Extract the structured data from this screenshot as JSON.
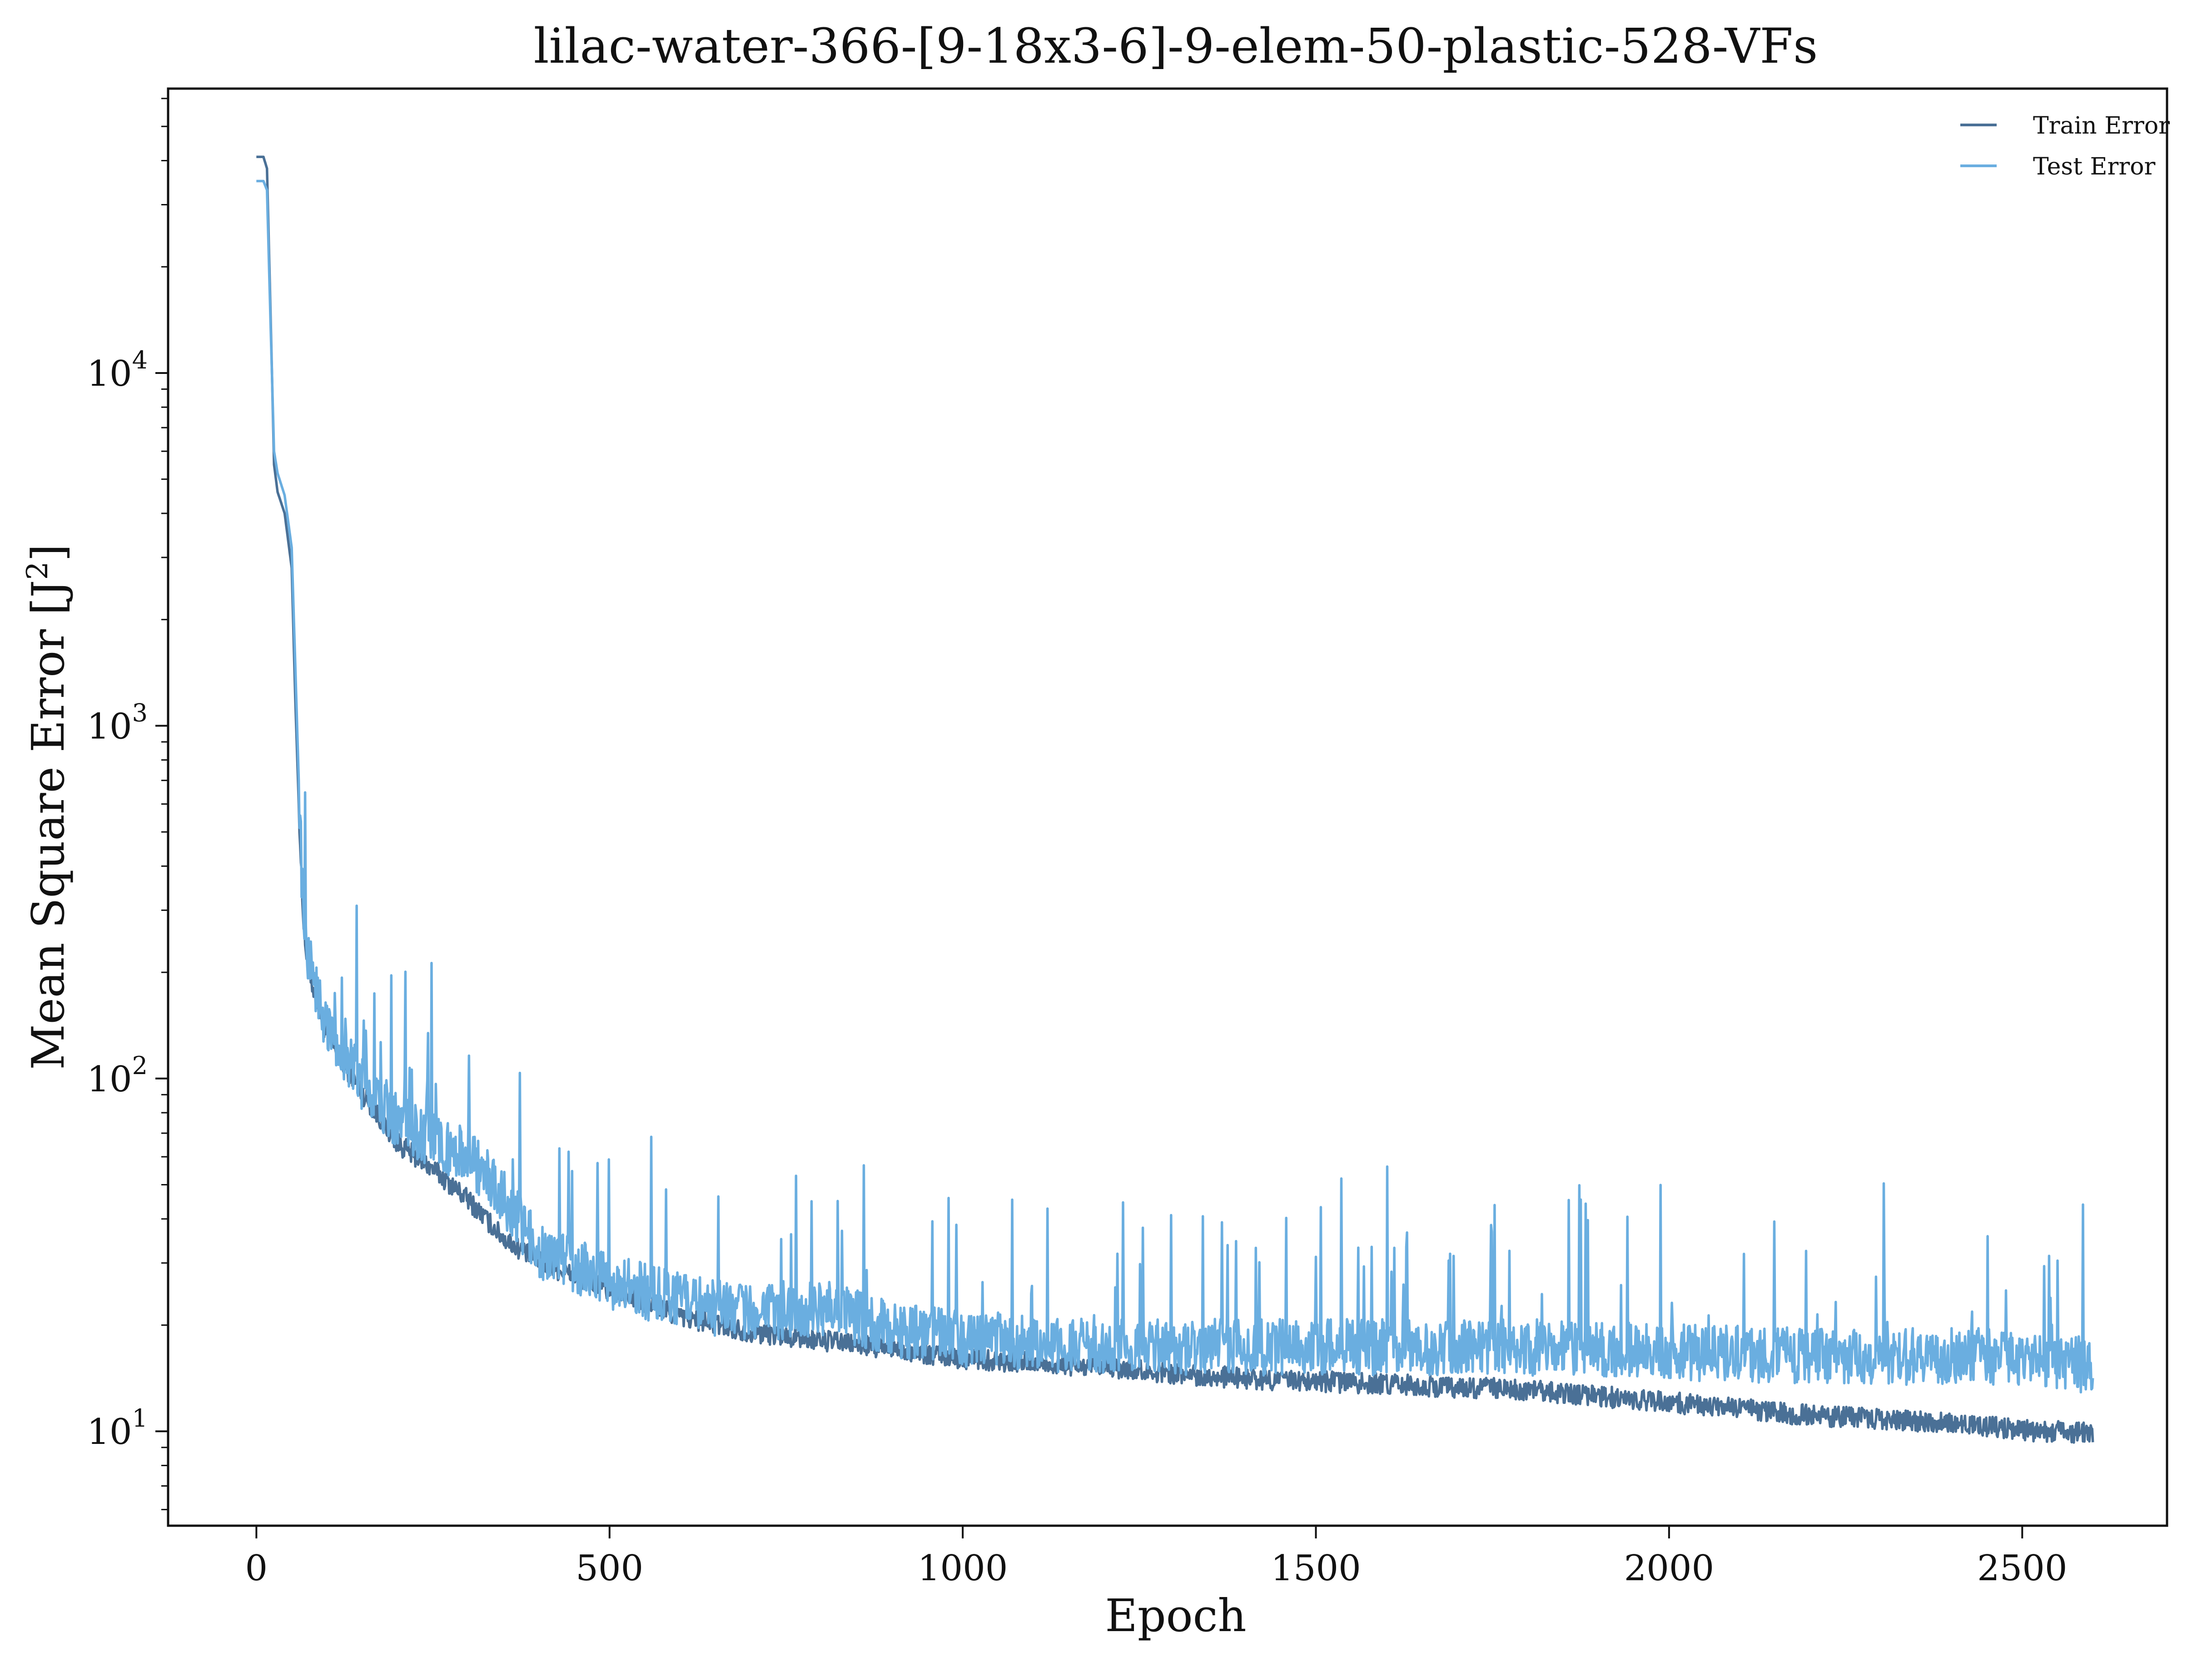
{
  "chart_data": {
    "type": "line",
    "title": "lilac-water-366-[9-18x3-6]-9-elem-50-plastic-528-VFs",
    "xlabel": "Epoch",
    "ylabel": "Mean Square Error [J",
    "ylabel_sup": "2",
    "ylabel_close": "]",
    "xlim": [
      -125,
      2705
    ],
    "ylim": [
      5.4,
      64000
    ],
    "yscale": "log",
    "grid": false,
    "legend_position": "top-right",
    "x_ticks": [
      {
        "value": 0,
        "label": "0"
      },
      {
        "value": 500,
        "label": "500"
      },
      {
        "value": 1000,
        "label": "1000"
      },
      {
        "value": 1500,
        "label": "1500"
      },
      {
        "value": 2000,
        "label": "2000"
      },
      {
        "value": 2500,
        "label": "2500"
      }
    ],
    "y_ticks": [
      {
        "value": 10,
        "base": "10",
        "exp": "1"
      },
      {
        "value": 100,
        "base": "10",
        "exp": "2"
      },
      {
        "value": 1000,
        "base": "10",
        "exp": "3"
      },
      {
        "value": 10000,
        "base": "10",
        "exp": "4"
      }
    ],
    "series": [
      {
        "name": "Train Error",
        "color": "#4a7096",
        "x": [
          0,
          10,
          15,
          20,
          25,
          30,
          40,
          50,
          55,
          60,
          65,
          70,
          80,
          100,
          150,
          200,
          250,
          300,
          350,
          400,
          500,
          600,
          700,
          800,
          900,
          1000,
          1200,
          1400,
          1600,
          1800,
          2000,
          2200,
          2400,
          2500,
          2600
        ],
        "y": [
          41000,
          41000,
          38000,
          15000,
          5500,
          4600,
          4000,
          2800,
          1200,
          600,
          320,
          230,
          180,
          130,
          90,
          65,
          55,
          45,
          35,
          30,
          25,
          21,
          19,
          18,
          17,
          16,
          15,
          14,
          13.5,
          13,
          12,
          11,
          10.5,
          10,
          9.8
        ]
      },
      {
        "name": "Test Error",
        "color": "#6aaee0",
        "x": [
          0,
          10,
          15,
          20,
          25,
          30,
          40,
          50,
          55,
          60,
          65,
          70,
          80,
          100,
          150,
          200,
          250,
          300,
          350,
          400,
          500,
          600,
          700,
          800,
          900,
          1000,
          1200,
          1400,
          1600,
          1800,
          2000,
          2200,
          2400,
          2500,
          2600
        ],
        "y": [
          35000,
          35000,
          33000,
          14000,
          6000,
          5200,
          4500,
          3200,
          1500,
          700,
          330,
          240,
          190,
          135,
          95,
          75,
          65,
          60,
          45,
          32,
          26,
          23,
          21,
          22,
          19,
          18,
          17,
          17,
          17,
          17,
          16.5,
          16,
          16,
          16,
          15
        ]
      }
    ]
  }
}
